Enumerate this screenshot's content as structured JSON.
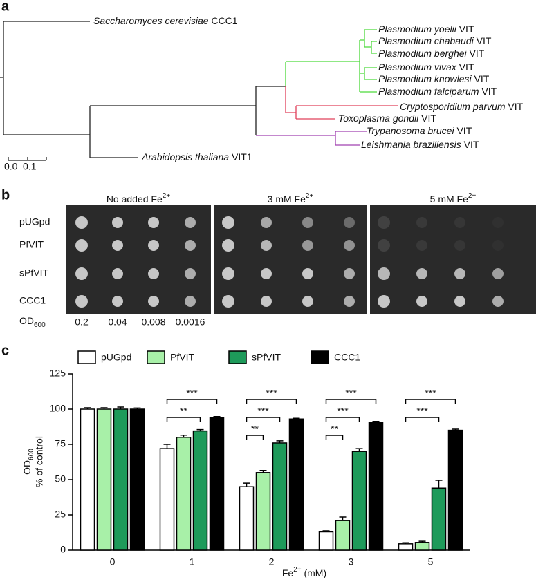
{
  "panels": {
    "a": "a",
    "b": "b",
    "c": "c"
  },
  "tree": {
    "leaves": [
      {
        "italic": "Saccharomyces cerevisiae",
        "plain": " CCC1"
      },
      {
        "italic": "Plasmodium yoelii",
        "plain": " VIT"
      },
      {
        "italic": "Plasmodium chabaudi",
        "plain": " VIT"
      },
      {
        "italic": "Plasmodium berghei",
        "plain": " VIT"
      },
      {
        "italic": "Plasmodium vivax",
        "plain": " VIT"
      },
      {
        "italic": "Plasmodium knowlesi",
        "plain": " VIT"
      },
      {
        "italic": "Plasmodium falciparum",
        "plain": " VIT"
      },
      {
        "italic": "Cryptosporidium parvum",
        "plain": " VIT"
      },
      {
        "italic": "Toxoplasma gondii",
        "plain": " VIT"
      },
      {
        "italic": "Trypanosoma brucei",
        "plain": " VIT"
      },
      {
        "italic": "Leishmania braziliensis",
        "plain": " VIT"
      },
      {
        "italic": "Arabidopsis thaliana",
        "plain": " VIT1"
      }
    ],
    "scale_labels": [
      "0.0",
      "0.1"
    ]
  },
  "plates": {
    "headers": [
      {
        "text": "No added Fe",
        "sup": "2+"
      },
      {
        "text": "3 mM Fe",
        "sup": "2+"
      },
      {
        "text": "5 mM Fe",
        "sup": "2+"
      }
    ],
    "rows": [
      "pUGpd",
      "PfVIT",
      "sPfVIT",
      "CCC1"
    ],
    "od_label": {
      "text": "OD",
      "sub": "600"
    },
    "dilutions": [
      "0.2",
      "0.04",
      "0.008",
      "0.0016"
    ]
  },
  "chart_data": {
    "type": "bar",
    "ylabel": {
      "text": "OD",
      "sub": "600",
      "line2": "% of control"
    },
    "xlabel": {
      "text": "Fe",
      "sup": "2+",
      "rest": " (mM)"
    },
    "categories": [
      "0",
      "1",
      "2",
      "3",
      "5"
    ],
    "ylim": [
      0,
      125
    ],
    "yticks": [
      0,
      25,
      50,
      75,
      100,
      125
    ],
    "series": [
      {
        "name": "pUGpd",
        "color": "#ffffff",
        "values": [
          100,
          72,
          45,
          13,
          4.5
        ],
        "errors": [
          1,
          3,
          2.5,
          0.7,
          0.8
        ]
      },
      {
        "name": "PfVIT",
        "color": "#a8f0a8",
        "values": [
          100,
          80,
          55,
          21,
          5.5
        ],
        "errors": [
          1,
          1.5,
          1.5,
          2.5,
          0.8
        ]
      },
      {
        "name": "sPfVIT",
        "color": "#1e9a5a",
        "values": [
          100,
          84.5,
          76,
          70,
          44
        ],
        "errors": [
          1.5,
          1,
          1.5,
          2,
          5.5
        ]
      },
      {
        "name": "CCC1",
        "color": "#000000",
        "values": [
          100,
          94,
          93,
          90.5,
          85
        ],
        "errors": [
          0.8,
          0.7,
          0.5,
          0.8,
          0.8
        ]
      }
    ],
    "significance": [
      [],
      [
        "***",
        "**"
      ],
      [
        "***",
        "***",
        "**"
      ],
      [
        "***",
        "***",
        "**"
      ],
      [
        "***",
        "***"
      ]
    ]
  }
}
